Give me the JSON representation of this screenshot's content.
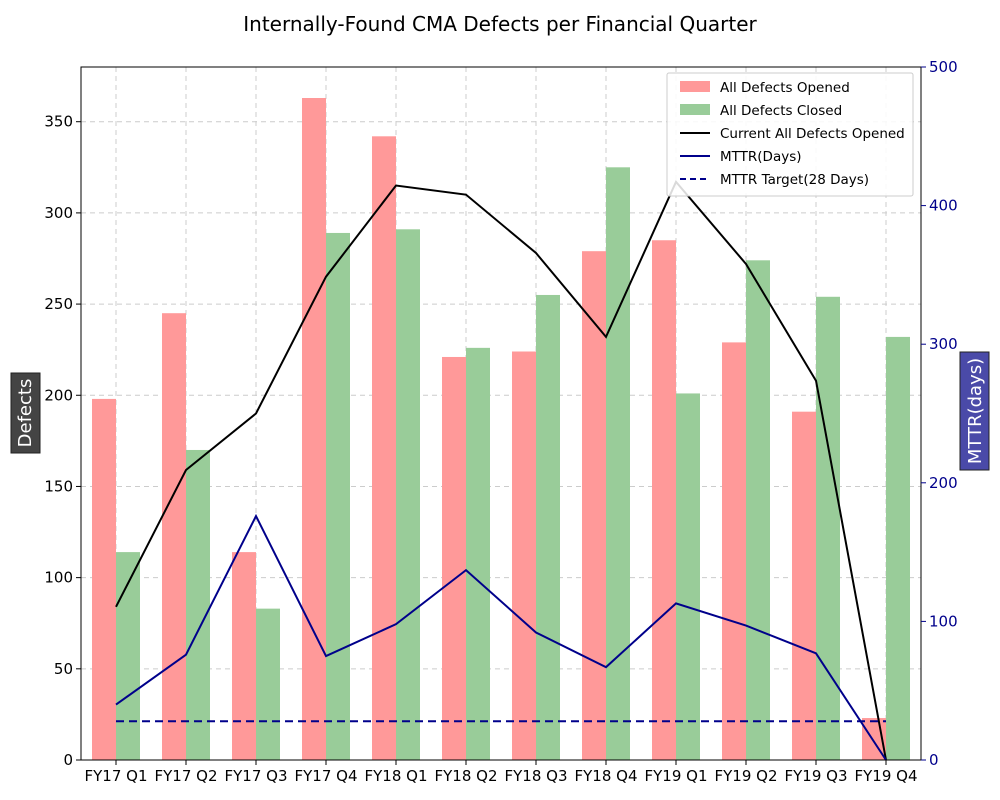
{
  "chart_data": {
    "type": "bar",
    "title": "Internally-Found CMA Defects per Financial Quarter",
    "categories": [
      "FY17 Q1",
      "FY17 Q2",
      "FY17 Q3",
      "FY17 Q4",
      "FY18 Q1",
      "FY18 Q2",
      "FY18 Q3",
      "FY18 Q4",
      "FY19 Q1",
      "FY19 Q2",
      "FY19 Q3",
      "FY19 Q4"
    ],
    "ylabel": "Defects",
    "ylim": [
      0,
      380
    ],
    "yticks": [
      0,
      50,
      100,
      150,
      200,
      250,
      300,
      350
    ],
    "y2label": "MTTR(days)",
    "y2lim": [
      0,
      500
    ],
    "y2ticks": [
      0,
      100,
      200,
      300,
      400,
      500
    ],
    "grid": true,
    "legend_position": "top-right",
    "series": [
      {
        "name": "All Defects Opened",
        "kind": "bar",
        "axis": "left",
        "color": "#ff9999",
        "values": [
          198,
          245,
          114,
          363,
          342,
          221,
          224,
          279,
          285,
          229,
          191,
          23
        ]
      },
      {
        "name": "All Defects Closed",
        "kind": "bar",
        "axis": "left",
        "color": "#99cc99",
        "values": [
          114,
          170,
          83,
          289,
          291,
          226,
          255,
          325,
          201,
          274,
          254,
          232
        ]
      },
      {
        "name": "Current All Defects Opened",
        "kind": "line",
        "axis": "left",
        "color": "#000000",
        "dash": "solid",
        "values": [
          84,
          159,
          190,
          265,
          315,
          310,
          278,
          232,
          317,
          272,
          208,
          0
        ]
      },
      {
        "name": "MTTR(Days)",
        "kind": "line",
        "axis": "right",
        "color": "#00008b",
        "dash": "solid",
        "values": [
          40,
          76,
          176,
          75,
          98,
          137,
          92,
          67,
          113,
          97,
          77,
          0
        ]
      },
      {
        "name": "MTTR Target(28 Days)",
        "kind": "line",
        "axis": "right",
        "color": "#00008b",
        "dash": "dashed",
        "values": [
          28,
          28,
          28,
          28,
          28,
          28,
          28,
          28,
          28,
          28,
          28,
          28
        ]
      }
    ]
  },
  "colors": {
    "left_axis_label_bg": "#444444",
    "right_axis_label_bg": "#4a4aa8",
    "right_axis_color": "#00008b",
    "grid_color": "#cccccc"
  }
}
